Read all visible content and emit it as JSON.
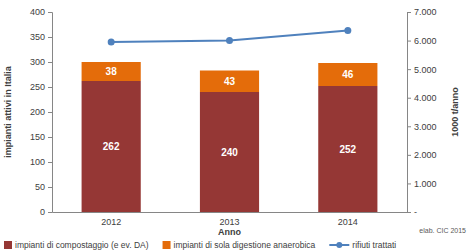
{
  "chart_data": {
    "type": "bar",
    "stacked": true,
    "categories": [
      "2012",
      "2013",
      "2014"
    ],
    "series": [
      {
        "name": "impianti di compostaggio (e ev. DA)",
        "type": "bar",
        "color": "#953735",
        "values": [
          262,
          240,
          252
        ],
        "data_labels": true
      },
      {
        "name": "impianti di sola digestione anaerobica",
        "type": "bar",
        "color": "#E46C0A",
        "values": [
          38,
          43,
          46
        ],
        "data_labels": true
      },
      {
        "name": "rifiuti trattati",
        "type": "line",
        "axis": "y2",
        "color": "#4F81BD",
        "marker": "circle",
        "values": [
          5950,
          6000,
          6350
        ]
      }
    ],
    "x_label": "Anno",
    "y_label": "impianti attivi in Italia",
    "y2_label": "1000 t/anno",
    "annotations": [
      "elab. CIC 2015"
    ],
    "ylim": [
      0,
      400
    ],
    "yticks": [
      0,
      50,
      100,
      150,
      200,
      250,
      300,
      350,
      400
    ],
    "y2lim": [
      0,
      7000
    ],
    "y2ticks": [
      {
        "value": 0,
        "label": "-"
      },
      {
        "value": 1000,
        "label": "1.000"
      },
      {
        "value": 2000,
        "label": "2.000"
      },
      {
        "value": 3000,
        "label": "3.000"
      },
      {
        "value": 4000,
        "label": "4.000"
      },
      {
        "value": 5000,
        "label": "5.000"
      },
      {
        "value": 6000,
        "label": "6.000"
      },
      {
        "value": 7000,
        "label": "7.000"
      }
    ],
    "grid": false,
    "legend": "bottom"
  }
}
